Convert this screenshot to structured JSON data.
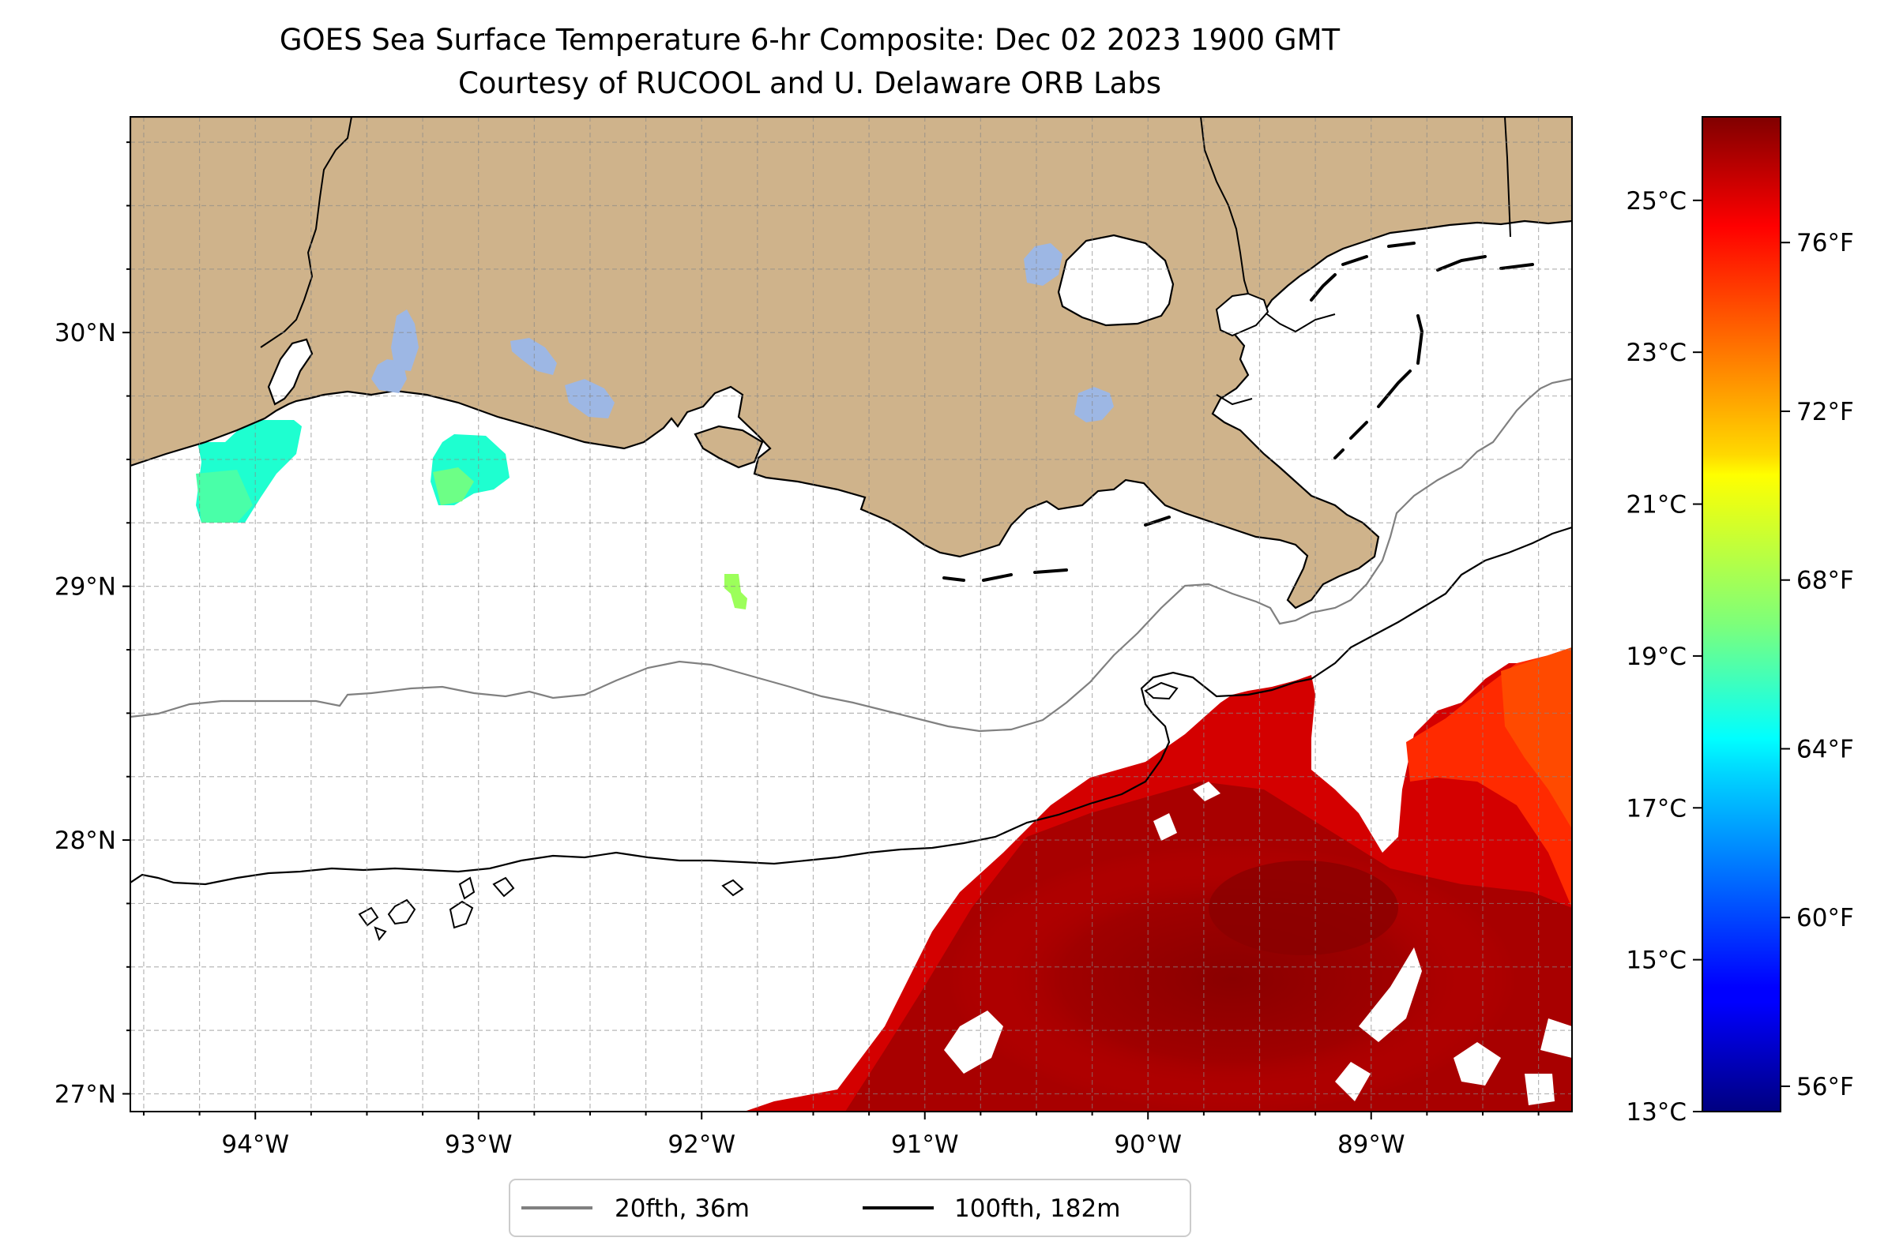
{
  "title": "GOES Sea Surface Temperature 6-hr Composite: Dec 02 2023 1900 GMT",
  "subtitle": "Courtesy of RUCOOL and U. Delaware ORB Labs",
  "map": {
    "lon_range": [
      -94.56,
      -88.1
    ],
    "lat_range": [
      26.93,
      30.85
    ],
    "lon_ticks": [
      {
        "value": -94,
        "label": "94°W"
      },
      {
        "value": -93,
        "label": "93°W"
      },
      {
        "value": -92,
        "label": "92°W"
      },
      {
        "value": -91,
        "label": "91°W"
      },
      {
        "value": -90,
        "label": "90°W"
      },
      {
        "value": -89,
        "label": "89°W"
      }
    ],
    "lat_ticks": [
      {
        "value": 27,
        "label": "27°N"
      },
      {
        "value": 28,
        "label": "28°N"
      },
      {
        "value": 29,
        "label": "29°N"
      },
      {
        "value": 30,
        "label": "30°N"
      }
    ],
    "land_color": "#cfb38b",
    "water_color": "#9db7e4",
    "grid": true,
    "contours": [
      {
        "label": "20fth, 36m",
        "color": "#808080"
      },
      {
        "label": "100fth, 182m",
        "color": "#000000"
      }
    ],
    "legend_placement": "bottom-center"
  },
  "colorbar": {
    "colormap": "jet",
    "celsius_range": [
      13,
      26.1
    ],
    "celsius_ticks": [
      {
        "value": 13,
        "label": "13°C"
      },
      {
        "value": 15,
        "label": "15°C"
      },
      {
        "value": 17,
        "label": "17°C"
      },
      {
        "value": 19,
        "label": "19°C"
      },
      {
        "value": 21,
        "label": "21°C"
      },
      {
        "value": 23,
        "label": "23°C"
      },
      {
        "value": 25,
        "label": "25°C"
      }
    ],
    "fahrenheit_ticks": [
      {
        "value": 56,
        "label": "56°F"
      },
      {
        "value": 60,
        "label": "60°F"
      },
      {
        "value": 64,
        "label": "64°F"
      },
      {
        "value": 68,
        "label": "68°F"
      },
      {
        "value": 72,
        "label": "72°F"
      },
      {
        "value": 76,
        "label": "76°F"
      }
    ]
  }
}
